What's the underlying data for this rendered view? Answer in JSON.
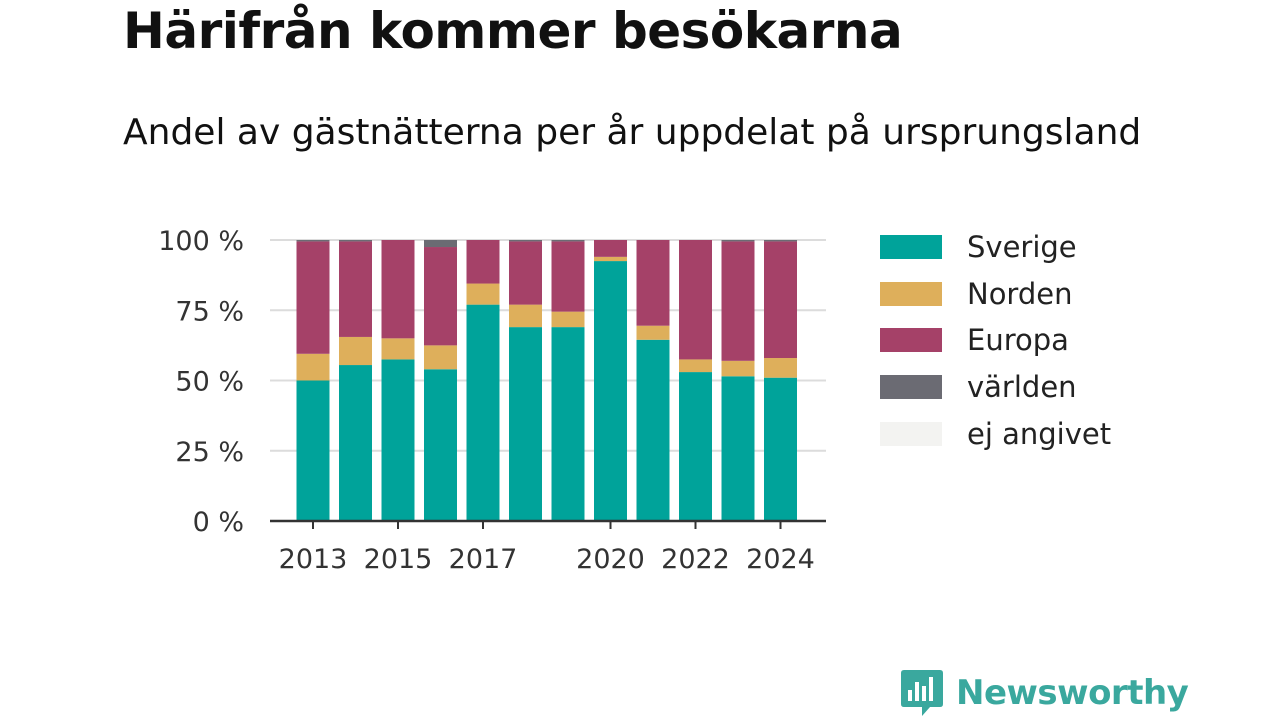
{
  "header": {
    "title": "Härifrån kommer besökarna",
    "subtitle": "Andel av gästnätterna per år uppdelat på ursprungsland"
  },
  "brand": {
    "name": "Newsworthy",
    "icon": "newsworthy-logo-icon",
    "color": "#3aa89e"
  },
  "colors": {
    "Sverige": "#00a39a",
    "Norden": "#deaf5b",
    "Europa": "#a54168",
    "världen": "#6b6b73",
    "ej angivet": "#f3f3f1"
  },
  "chart_data": {
    "type": "bar",
    "stacked": true,
    "categories": [
      "2013",
      "2014",
      "2015",
      "2016",
      "2017",
      "2018",
      "2019",
      "2020",
      "2021",
      "2022",
      "2023",
      "2024"
    ],
    "x_tick_labels": [
      "2013",
      "2015",
      "2017",
      "2020",
      "2022",
      "2024"
    ],
    "y_tick_labels": [
      "0 %",
      "25 %",
      "50 %",
      "75 %",
      "100 %"
    ],
    "y_ticks": [
      0,
      25,
      50,
      75,
      100
    ],
    "ylim": [
      0,
      100
    ],
    "grid": true,
    "legend_position": "right",
    "series": [
      {
        "name": "Sverige",
        "color": "#00a39a",
        "values": [
          50,
          55.5,
          57.5,
          54,
          77,
          69,
          69,
          92.5,
          64.5,
          53,
          51.5,
          51
        ]
      },
      {
        "name": "Norden",
        "color": "#deaf5b",
        "values": [
          9.5,
          10,
          7.5,
          8.5,
          7.5,
          8,
          5.5,
          1.5,
          5,
          4.5,
          5.5,
          7
        ]
      },
      {
        "name": "Europa",
        "color": "#a54168",
        "values": [
          40,
          34,
          35,
          35,
          15.5,
          22.5,
          25,
          6,
          30.5,
          42.5,
          42.5,
          41.5
        ]
      },
      {
        "name": "världen",
        "color": "#6b6b73",
        "values": [
          0.5,
          0.5,
          0,
          2.5,
          0,
          0.5,
          0.5,
          0,
          0,
          0,
          0.5,
          0.5
        ]
      },
      {
        "name": "ej angivet",
        "color": "#f3f3f1",
        "values": [
          0,
          0,
          0,
          0,
          0,
          0,
          0,
          0,
          0,
          0,
          0,
          0
        ]
      }
    ]
  }
}
